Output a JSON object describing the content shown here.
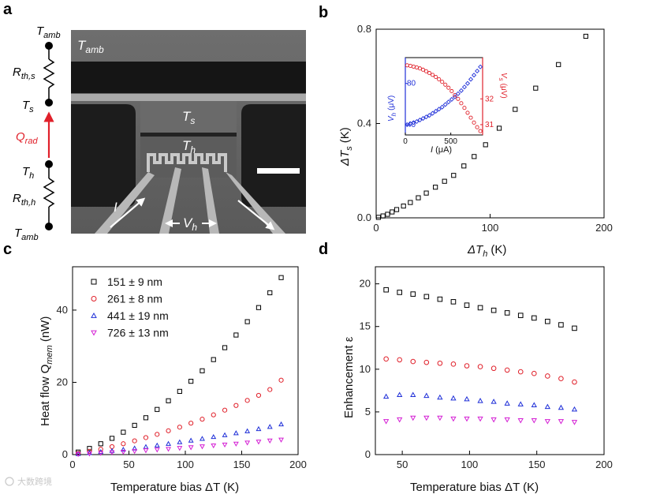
{
  "panels": {
    "a": "a",
    "b": "b",
    "c": "c",
    "d": "d"
  },
  "panel_a": {
    "circuit": {
      "t_amb_top": "T",
      "t_amb_top_sub": "amb",
      "r_th_s": "R",
      "r_th_s_sub": "th,s",
      "t_s": "T",
      "t_s_sub": "s",
      "q_rad": "Q",
      "q_rad_sub": "rad",
      "t_h": "T",
      "t_h_sub": "h",
      "r_th_h": "R",
      "r_th_h_sub": "th,h",
      "t_amb_bot": "T",
      "t_amb_bot_sub": "amb"
    },
    "sem": {
      "t_amb": "T",
      "t_amb_sub": "amb",
      "t_s": "T",
      "t_s_sub": "s",
      "t_h": "T",
      "t_h_sub": "h",
      "current": "I",
      "v_h": "V",
      "v_h_sub": "h"
    },
    "colors": {
      "q_rad": "#e0202a"
    }
  },
  "chart_data": [
    {
      "id": "b",
      "type": "scatter",
      "xlabel": "ΔT",
      "xlabel_sub": "h",
      "xlabel_unit": "(K)",
      "ylabel": "ΔT",
      "ylabel_sub": "s",
      "ylabel_unit": "(K)",
      "xlim": [
        0,
        200
      ],
      "ylim": [
        0,
        0.8
      ],
      "xticks": [
        0,
        100,
        200
      ],
      "yticks": [
        0.0,
        0.4,
        0.8
      ],
      "ytick_labels": [
        "0.0",
        "0.4",
        "0.8"
      ],
      "x": [
        2,
        6,
        10,
        14,
        18,
        24,
        30,
        37,
        44,
        52,
        60,
        68,
        77,
        86,
        96,
        108,
        122,
        140,
        160,
        184
      ],
      "y": [
        0.002,
        0.008,
        0.015,
        0.025,
        0.035,
        0.05,
        0.065,
        0.085,
        0.105,
        0.13,
        0.155,
        0.18,
        0.22,
        0.26,
        0.31,
        0.38,
        0.46,
        0.55,
        0.65,
        0.77
      ],
      "color": "#000000",
      "inset": {
        "xlabel": "I",
        "xlabel_unit": "(μA)",
        "ylabel_left": "V",
        "ylabel_left_sub": "h",
        "ylabel_left_unit": "(μV)",
        "ylabel_right": "V",
        "ylabel_right_sub": "s",
        "ylabel_right_unit": "(μV)",
        "xlim": [
          0,
          850
        ],
        "xticks": [
          0,
          500
        ],
        "left_ylim": [
          30,
          105
        ],
        "left_yticks": [
          40,
          80
        ],
        "right_ylim": [
          30.6,
          33.6
        ],
        "right_yticks": [
          31,
          32
        ],
        "left_color": "#1f2fd8",
        "right_color": "#e0202a",
        "current": [
          20,
          55,
          90,
          125,
          160,
          195,
          230,
          265,
          300,
          335,
          370,
          405,
          440,
          475,
          510,
          545,
          580,
          615,
          650,
          685,
          720,
          755,
          790,
          825
        ],
        "v_h": [
          40,
          41,
          42,
          43,
          44.5,
          46,
          47.5,
          49,
          51,
          53,
          55,
          57,
          59.5,
          62,
          64.5,
          67,
          70,
          73,
          76.5,
          80,
          84,
          88,
          92,
          96
        ],
        "v_s": [
          33.3,
          33.28,
          33.25,
          33.22,
          33.18,
          33.13,
          33.07,
          33.0,
          32.93,
          32.85,
          32.76,
          32.66,
          32.55,
          32.43,
          32.3,
          32.15,
          32.0,
          31.83,
          31.65,
          31.46,
          31.27,
          31.08,
          30.9,
          30.75
        ]
      }
    },
    {
      "id": "c",
      "type": "scatter",
      "xlabel": "Temperature bias ΔT (K)",
      "ylabel": "Heat flow Q",
      "ylabel_sub": "mem",
      "ylabel_unit": "(nW)",
      "xlim": [
        0,
        200
      ],
      "ylim": [
        0,
        52
      ],
      "xticks": [
        0,
        50,
        100,
        150,
        200
      ],
      "yticks": [
        0,
        20,
        40
      ],
      "x": [
        5,
        15,
        25,
        35,
        45,
        55,
        65,
        75,
        85,
        95,
        105,
        115,
        125,
        135,
        145,
        155,
        165,
        175,
        185
      ],
      "series": [
        {
          "name": "151 ± 9 nm",
          "marker": "square",
          "color": "#000000",
          "values": [
            0.7,
            1.7,
            3.0,
            4.5,
            6.2,
            8.1,
            10.2,
            12.5,
            14.9,
            17.5,
            20.3,
            23.2,
            26.3,
            29.6,
            33.1,
            36.8,
            40.7,
            44.8,
            49.0
          ]
        },
        {
          "name": "261 ± 8 nm",
          "marker": "circle",
          "color": "#e0202a",
          "values": [
            0.35,
            0.9,
            1.5,
            2.2,
            3.0,
            3.8,
            4.7,
            5.6,
            6.6,
            7.6,
            8.7,
            9.8,
            11.0,
            12.3,
            13.6,
            15.0,
            16.4,
            18.0,
            20.6
          ]
        },
        {
          "name": "441 ± 19 nm",
          "marker": "triangle-up",
          "color": "#1f2fd8",
          "values": [
            0.2,
            0.45,
            0.75,
            1.05,
            1.4,
            1.75,
            2.15,
            2.55,
            3.0,
            3.45,
            3.9,
            4.4,
            4.9,
            5.4,
            5.95,
            6.5,
            7.1,
            7.7,
            8.4
          ]
        },
        {
          "name": "726 ± 13 nm",
          "marker": "triangle-down",
          "color": "#d41fd4",
          "values": [
            0.1,
            0.25,
            0.4,
            0.6,
            0.75,
            0.95,
            1.15,
            1.35,
            1.55,
            1.8,
            2.0,
            2.25,
            2.5,
            2.75,
            3.0,
            3.3,
            3.55,
            3.85,
            4.1
          ]
        }
      ]
    },
    {
      "id": "d",
      "type": "scatter",
      "xlabel": "Temperature bias ΔT (K)",
      "ylabel": "Enhancement ε",
      "xlim": [
        30,
        200
      ],
      "ylim": [
        0,
        22
      ],
      "xticks": [
        50,
        100,
        150,
        200
      ],
      "yticks": [
        0,
        5,
        10,
        15,
        20
      ],
      "x": [
        38,
        48,
        58,
        68,
        78,
        88,
        98,
        108,
        118,
        128,
        138,
        148,
        158,
        168,
        178
      ],
      "series": [
        {
          "name": "151 ± 9 nm",
          "marker": "square",
          "color": "#000000",
          "values": [
            19.3,
            19.0,
            18.8,
            18.5,
            18.2,
            17.9,
            17.5,
            17.2,
            16.9,
            16.6,
            16.3,
            16.0,
            15.6,
            15.2,
            14.8
          ]
        },
        {
          "name": "261 ± 8 nm",
          "marker": "circle",
          "color": "#e0202a",
          "values": [
            11.2,
            11.1,
            10.9,
            10.8,
            10.7,
            10.6,
            10.4,
            10.3,
            10.1,
            9.9,
            9.7,
            9.5,
            9.2,
            8.9,
            8.5
          ]
        },
        {
          "name": "441 ± 19 nm",
          "marker": "triangle-up",
          "color": "#1f2fd8",
          "values": [
            6.8,
            7.0,
            7.0,
            6.9,
            6.7,
            6.6,
            6.5,
            6.3,
            6.2,
            6.0,
            5.9,
            5.8,
            5.6,
            5.5,
            5.3
          ]
        },
        {
          "name": "726 ± 13 nm",
          "marker": "triangle-down",
          "color": "#d41fd4",
          "values": [
            3.9,
            4.1,
            4.3,
            4.3,
            4.3,
            4.2,
            4.2,
            4.2,
            4.1,
            4.1,
            4.0,
            4.0,
            3.9,
            3.9,
            3.8
          ]
        }
      ]
    }
  ],
  "watermark": "大数跨境"
}
